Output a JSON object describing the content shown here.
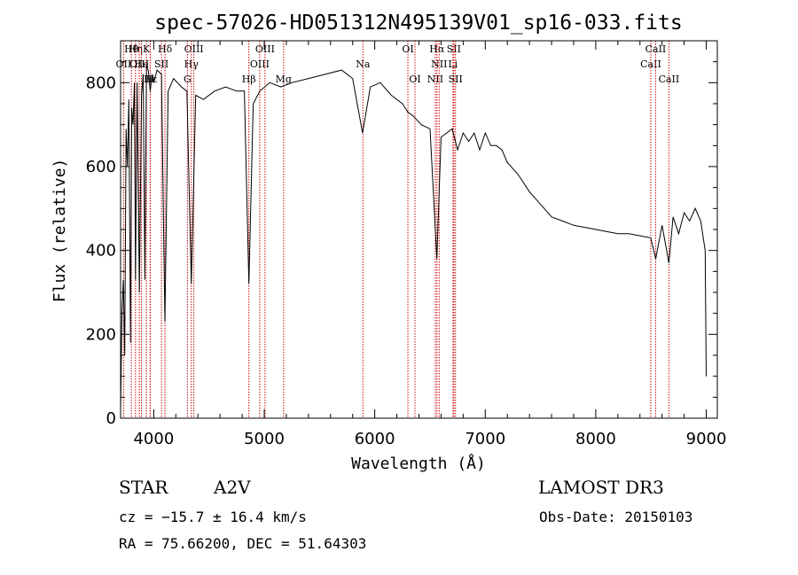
{
  "chart_data": {
    "type": "line",
    "title": "spec-57026-HD051312N495139V01_sp16-033.fits",
    "xlabel": "Wavelength (Å)",
    "ylabel": "Flux (relative)",
    "xlim": [
      3700,
      9100
    ],
    "ylim": [
      0,
      900
    ],
    "xticks": [
      4000,
      5000,
      6000,
      7000,
      8000,
      9000
    ],
    "yticks": [
      0,
      200,
      400,
      600,
      800
    ],
    "grid": false,
    "series": [
      {
        "x": [
          3700,
          3712,
          3725,
          3738,
          3750,
          3762,
          3775,
          3790,
          3800,
          3812,
          3825,
          3835,
          3850,
          3870,
          3889,
          3905,
          3920,
          3934,
          3950,
          3968,
          3985,
          4000,
          4030,
          4070,
          4101,
          4130,
          4180,
          4250,
          4300,
          4340,
          4380,
          4450,
          4550,
          4650,
          4750,
          4820,
          4861,
          4900,
          4960,
          5050,
          5150,
          5250,
          5400,
          5550,
          5700,
          5800,
          5890,
          5960,
          6050,
          6150,
          6250,
          6300,
          6350,
          6420,
          6500,
          6562,
          6600,
          6650,
          6700,
          6750,
          6800,
          6850,
          6900,
          6950,
          7000,
          7050,
          7100,
          7150,
          7200,
          7300,
          7400,
          7500,
          7600,
          7700,
          7800,
          7900,
          8000,
          8100,
          8200,
          8300,
          8400,
          8498,
          8542,
          8600,
          8662,
          8700,
          8750,
          8800,
          8850,
          8900,
          8950,
          8990,
          9000
        ],
        "y": [
          20,
          250,
          330,
          150,
          690,
          600,
          760,
          180,
          740,
          700,
          800,
          330,
          800,
          300,
          770,
          820,
          330,
          840,
          830,
          780,
          820,
          800,
          830,
          820,
          230,
          780,
          810,
          790,
          780,
          320,
          770,
          760,
          780,
          790,
          780,
          780,
          320,
          750,
          780,
          800,
          790,
          800,
          810,
          820,
          830,
          810,
          680,
          790,
          800,
          770,
          750,
          730,
          720,
          700,
          690,
          380,
          670,
          680,
          690,
          640,
          680,
          660,
          680,
          640,
          680,
          650,
          650,
          640,
          610,
          580,
          540,
          510,
          480,
          470,
          460,
          455,
          450,
          445,
          440,
          440,
          435,
          430,
          380,
          460,
          370,
          480,
          440,
          490,
          470,
          500,
          470,
          400,
          100
        ]
      }
    ],
    "lines": [
      {
        "label": "OII",
        "x": 3727,
        "row": 1
      },
      {
        "label": "Hθ",
        "x": 3798,
        "row": 0
      },
      {
        "label": "Hη",
        "x": 3835,
        "row": 0
      },
      {
        "label": "OIII",
        "x": 3869,
        "row": 1
      },
      {
        "label": "He",
        "x": 3889,
        "row": 1
      },
      {
        "label": "K",
        "x": 3934,
        "row": 0
      },
      {
        "label": "SII",
        "x": 4070,
        "row": 1
      },
      {
        "label": "Hδ",
        "x": 4102,
        "row": 0
      },
      {
        "label": "H",
        "x": 3968,
        "row": 2
      },
      {
        "label": "Hε",
        "x": 3970,
        "row": 2
      },
      {
        "label": "OIII",
        "x": 4363,
        "row": 0
      },
      {
        "label": "Hγ",
        "x": 4340,
        "row": 1
      },
      {
        "label": "G",
        "x": 4305,
        "row": 2
      },
      {
        "label": "Hβ",
        "x": 4861,
        "row": 2
      },
      {
        "label": "OIII",
        "x": 4959,
        "row": 1
      },
      {
        "label": "OIII",
        "x": 5007,
        "row": 0
      },
      {
        "label": "Mg",
        "x": 5175,
        "row": 2
      },
      {
        "label": "Na",
        "x": 5893,
        "row": 1
      },
      {
        "label": "OI",
        "x": 6300,
        "row": 0
      },
      {
        "label": "OI",
        "x": 6364,
        "row": 2
      },
      {
        "label": "NII",
        "x": 6548,
        "row": 2
      },
      {
        "label": "Hα",
        "x": 6563,
        "row": 0
      },
      {
        "label": "NII",
        "x": 6583,
        "row": 1
      },
      {
        "label": "SII",
        "x": 6716,
        "row": 0
      },
      {
        "label": "Li",
        "x": 6708,
        "row": 1
      },
      {
        "label": "SII",
        "x": 6731,
        "row": 2
      },
      {
        "label": "CaII",
        "x": 8498,
        "row": 1
      },
      {
        "label": "CaII",
        "x": 8542,
        "row": 0
      },
      {
        "label": "CaII",
        "x": 8662,
        "row": 2
      }
    ]
  },
  "info": {
    "object_type": "STAR",
    "subclass": "A2V",
    "survey": "LAMOST DR3",
    "cz": "cz = −15.7 ± 16.4 km/s",
    "obs_date": "Obs-Date: 20150103",
    "coords": "RA =  75.66200, DEC =  51.64303"
  },
  "colors": {
    "spectrum": "#000000",
    "line_markers": "#cc0000"
  }
}
